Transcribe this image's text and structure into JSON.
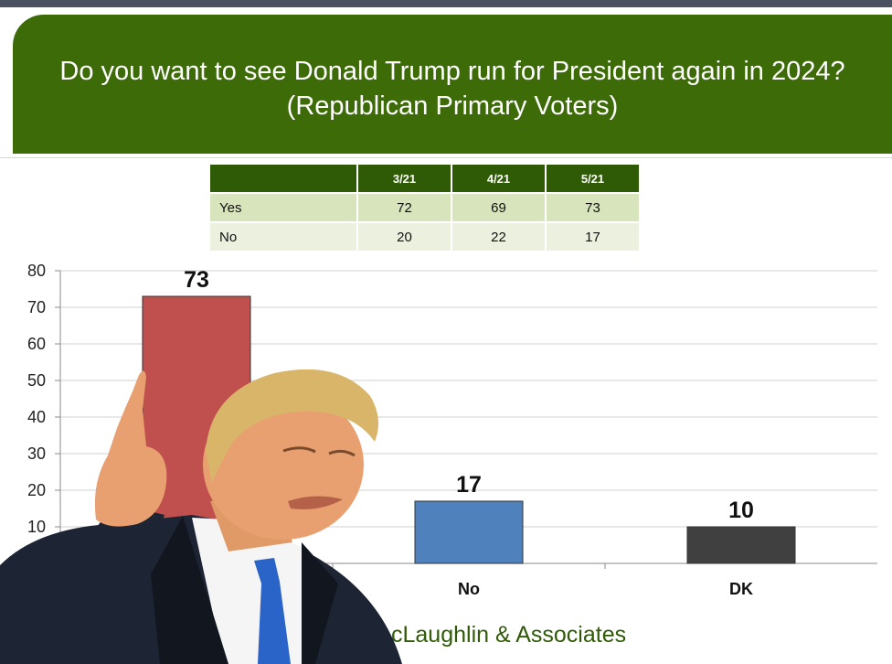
{
  "header": {
    "title_line1": "Do you want to see Donald Trump run for President again in 2024?",
    "title_line2": "(Republican Primary Voters)",
    "color": "#3d6b08"
  },
  "table": {
    "columns": [
      "3/21",
      "4/21",
      "5/21"
    ],
    "rows": [
      {
        "label": "Yes",
        "values": [
          "72",
          "69",
          "73"
        ]
      },
      {
        "label": "No",
        "values": [
          "20",
          "22",
          "17"
        ]
      }
    ]
  },
  "chart_data": {
    "type": "bar",
    "categories": [
      "Yes",
      "No",
      "DK"
    ],
    "category_labels_visible": [
      "",
      "No",
      "DK"
    ],
    "values": [
      73,
      17,
      10
    ],
    "data_labels": [
      "73",
      "17",
      "10"
    ],
    "colors": [
      "#c0504d",
      "#4f81bd",
      "#404040"
    ],
    "ylim": [
      0,
      80
    ],
    "yticks": [
      0,
      10,
      20,
      30,
      40,
      50,
      60,
      70,
      80
    ],
    "ytick_labels": [
      "",
      "10",
      "20",
      "30",
      "40",
      "50",
      "60",
      "70",
      "80"
    ],
    "grid": true,
    "legend": "none"
  },
  "footer": {
    "text": "cLaughlin & Associates"
  },
  "overlay": {
    "icon": "person-pointing-photo-icon"
  }
}
